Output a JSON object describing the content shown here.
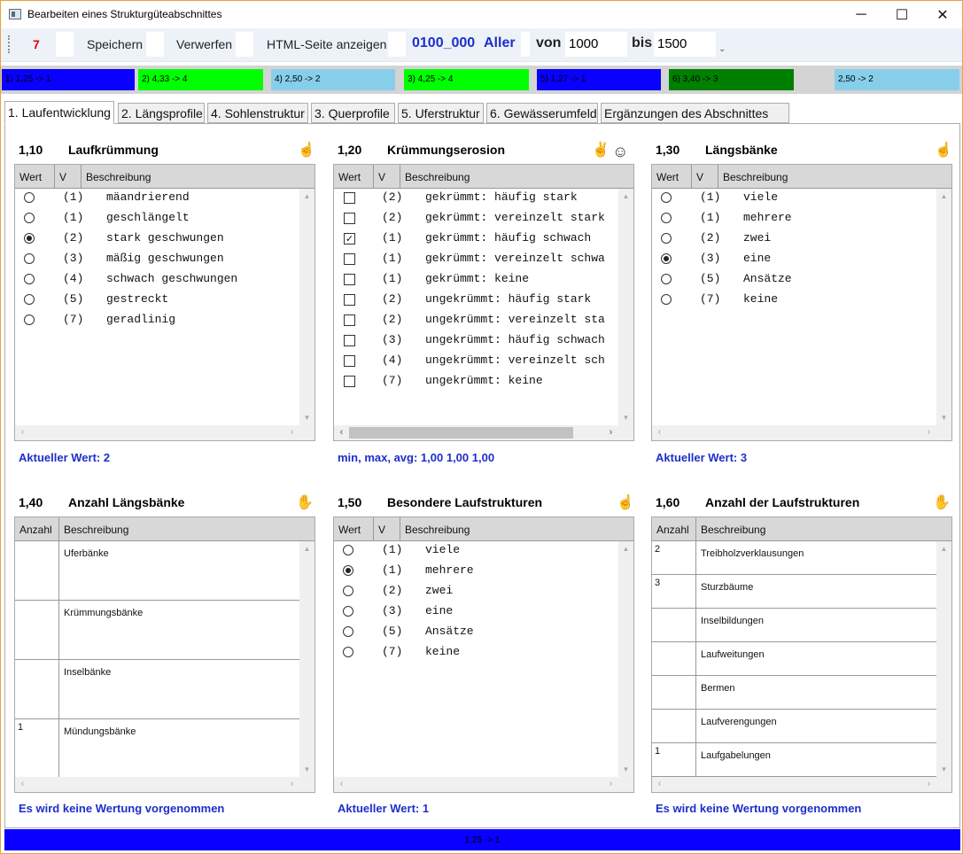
{
  "window": {
    "title": "Bearbeiten eines Strukturgüteabschnittes",
    "minimize": "─",
    "maximize": "☐",
    "close": "✕"
  },
  "toolbar": {
    "count": "7",
    "save": "Speichern",
    "discard": "Verwerfen",
    "html": "HTML-Seite anzeigen",
    "section_code": "0100_000",
    "river": "Aller",
    "from_label": "von",
    "from_value": "1000",
    "to_label": "bis",
    "to_value": "1500",
    "overflow": "⌄"
  },
  "strip": [
    {
      "label": "1) 1,25 -> 1",
      "color": "#0a00ff"
    },
    {
      "label": "2) 4,33 -> 4",
      "color": "#00ff00"
    },
    {
      "label": "4) 2,50 -> 2",
      "color": "#87ceeb"
    },
    {
      "label": "3) 4,25 -> 4",
      "color": "#00ff00"
    },
    {
      "label": "5) 1,27 -> 1",
      "color": "#0a00ff"
    },
    {
      "label": "6) 3,40 -> 3",
      "color": "#008000"
    },
    {
      "label": "2,50 -> 2",
      "color": "#87ceeb"
    }
  ],
  "tabs": [
    "1. Laufentwicklung",
    "2. Längsprofile",
    "4. Sohlenstruktur",
    "3. Querprofile",
    "5. Uferstruktur",
    "6. Gewässerumfeld",
    "Ergänzungen des Abschnittes"
  ],
  "sections": {
    "s110": {
      "num": "1,10",
      "title": "Laufkrümmung",
      "icon": "☝",
      "cols": [
        "Wert",
        "V",
        "Beschreibung"
      ],
      "rows": [
        {
          "code": "(1)",
          "desc": "mäandrierend",
          "sel": false
        },
        {
          "code": "(1)",
          "desc": "geschlängelt",
          "sel": false
        },
        {
          "code": "(2)",
          "desc": "stark geschwungen",
          "sel": true
        },
        {
          "code": "(3)",
          "desc": "mäßig geschwungen",
          "sel": false
        },
        {
          "code": "(4)",
          "desc": "schwach geschwungen",
          "sel": false
        },
        {
          "code": "(5)",
          "desc": "gestreckt",
          "sel": false
        },
        {
          "code": "(7)",
          "desc": "geradlinig",
          "sel": false
        }
      ],
      "status": "Aktueller Wert: 2"
    },
    "s120": {
      "num": "1,20",
      "title": "Krümmungserosion",
      "icon": "✌",
      "icon2": "☺",
      "cols": [
        "Wert",
        "V",
        "Beschreibung"
      ],
      "rows": [
        {
          "code": "(2)",
          "desc": "gekrümmt: häufig stark",
          "sel": false
        },
        {
          "code": "(2)",
          "desc": "gekrümmt: vereinzelt stark",
          "sel": false
        },
        {
          "code": "(1)",
          "desc": "gekrümmt: häufig schwach",
          "sel": true
        },
        {
          "code": "(1)",
          "desc": "gekrümmt: vereinzelt schwa",
          "sel": false
        },
        {
          "code": "(1)",
          "desc": "gekrümmt: keine",
          "sel": false
        },
        {
          "code": "(2)",
          "desc": "ungekrümmt: häufig stark",
          "sel": false
        },
        {
          "code": "(2)",
          "desc": "ungekrümmt: vereinzelt sta",
          "sel": false
        },
        {
          "code": "(3)",
          "desc": "ungekrümmt: häufig schwach",
          "sel": false
        },
        {
          "code": "(4)",
          "desc": "ungekrümmt: vereinzelt sch",
          "sel": false
        },
        {
          "code": "(7)",
          "desc": "ungekrümmt: keine",
          "sel": false
        }
      ],
      "status": "min, max, avg: 1,00  1,00  1,00"
    },
    "s130": {
      "num": "1,30",
      "title": "Längsbänke",
      "icon": "☝",
      "cols": [
        "Wert",
        "V",
        "Beschreibung"
      ],
      "rows": [
        {
          "code": "(1)",
          "desc": "viele",
          "sel": false
        },
        {
          "code": "(1)",
          "desc": "mehrere",
          "sel": false
        },
        {
          "code": "(2)",
          "desc": "zwei",
          "sel": false
        },
        {
          "code": "(3)",
          "desc": "eine",
          "sel": true
        },
        {
          "code": "(5)",
          "desc": "Ansätze",
          "sel": false
        },
        {
          "code": "(7)",
          "desc": "keine",
          "sel": false
        }
      ],
      "status": "Aktueller Wert: 3"
    },
    "s140": {
      "num": "1,40",
      "title": "Anzahl Längsbänke",
      "icon": "✋",
      "cols": [
        "Anzahl",
        "Beschreibung"
      ],
      "rows": [
        {
          "count": "",
          "desc": "Uferbänke"
        },
        {
          "count": "",
          "desc": "Krümmungsbänke"
        },
        {
          "count": "",
          "desc": "Inselbänke"
        },
        {
          "count": "1",
          "desc": "Mündungsbänke"
        }
      ],
      "status": "Es wird keine Wertung vorgenommen"
    },
    "s150": {
      "num": "1,50",
      "title": "Besondere Laufstrukturen",
      "icon": "☝",
      "cols": [
        "Wert",
        "V",
        "Beschreibung"
      ],
      "rows": [
        {
          "code": "(1)",
          "desc": "viele",
          "sel": false
        },
        {
          "code": "(1)",
          "desc": "mehrere",
          "sel": true
        },
        {
          "code": "(2)",
          "desc": "zwei",
          "sel": false
        },
        {
          "code": "(3)",
          "desc": "eine",
          "sel": false
        },
        {
          "code": "(5)",
          "desc": "Ansätze",
          "sel": false
        },
        {
          "code": "(7)",
          "desc": "keine",
          "sel": false
        }
      ],
      "status": "Aktueller Wert: 1"
    },
    "s160": {
      "num": "1,60",
      "title": "Anzahl der Laufstrukturen",
      "icon": "✋",
      "cols": [
        "Anzahl",
        "Beschreibung"
      ],
      "rows": [
        {
          "count": "2",
          "desc": "Treibholzverklausungen"
        },
        {
          "count": "3",
          "desc": "Sturzbäume"
        },
        {
          "count": "",
          "desc": "Inselbildungen"
        },
        {
          "count": "",
          "desc": "Laufweitungen"
        },
        {
          "count": "",
          "desc": "Bermen"
        },
        {
          "count": "",
          "desc": "Laufverengungen"
        },
        {
          "count": "1",
          "desc": "Laufgabelungen"
        }
      ],
      "status": "Es wird keine Wertung vorgenommen"
    }
  },
  "bottombar": {
    "label": "1,25 -> 1",
    "color": "#0a00ff"
  }
}
